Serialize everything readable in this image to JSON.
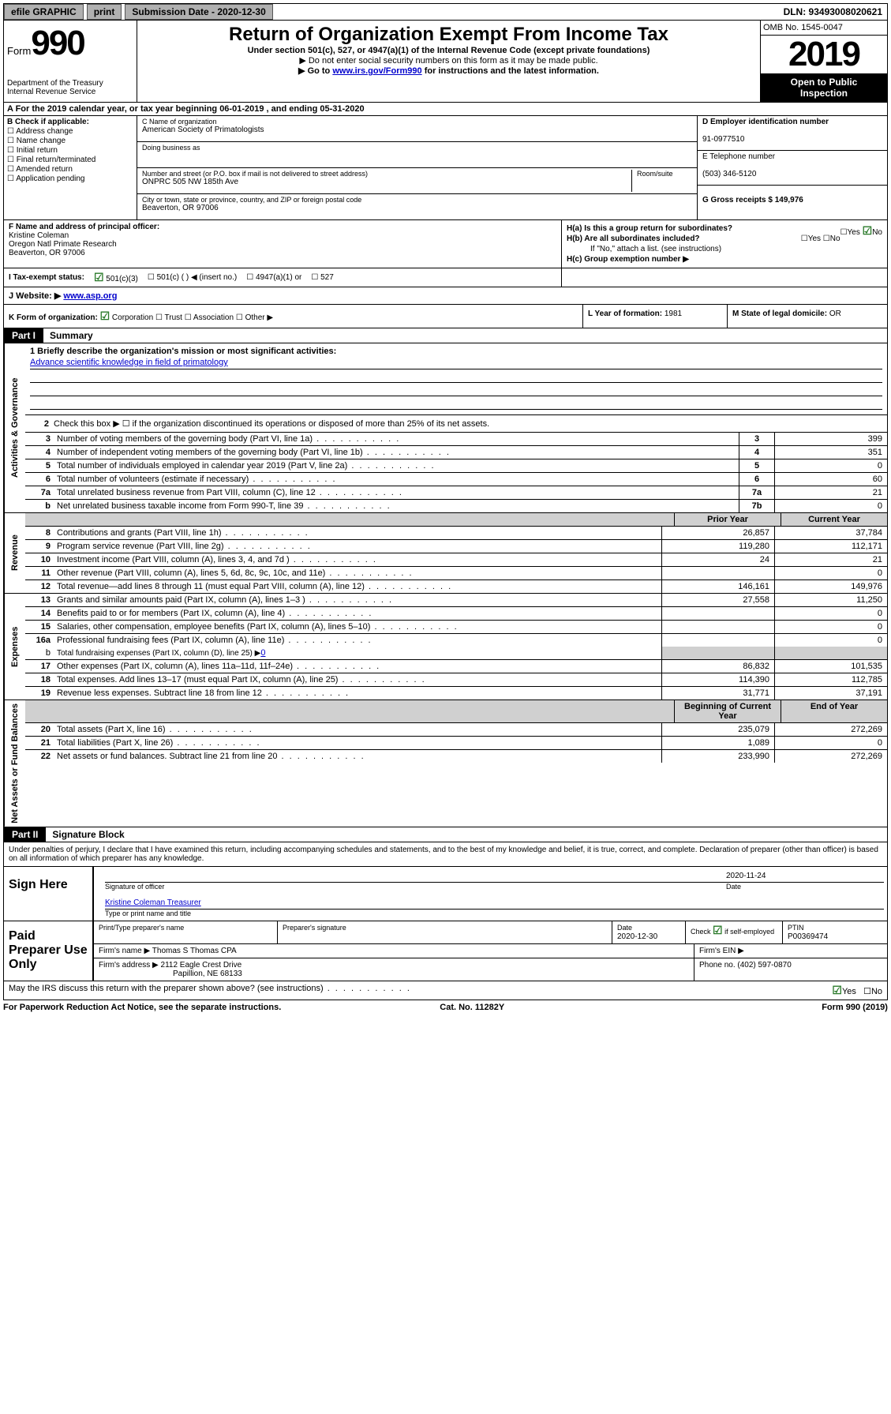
{
  "topbar": {
    "efile": "efile GRAPHIC",
    "print": "print",
    "subdate_label": "Submission Date - 2020-12-30",
    "dln_label": "DLN: 93493008020621"
  },
  "header": {
    "form_prefix": "Form",
    "form_num": "990",
    "dept": "Department of the Treasury\nInternal Revenue Service",
    "title": "Return of Organization Exempt From Income Tax",
    "subtitle": "Under section 501(c), 527, or 4947(a)(1) of the Internal Revenue Code (except private foundations)",
    "note1": "▶ Do not enter social security numbers on this form as it may be made public.",
    "note2_pre": "▶ Go to ",
    "note2_link": "www.irs.gov/Form990",
    "note2_post": " for instructions and the latest information.",
    "omb": "OMB No. 1545-0047",
    "year": "2019",
    "public1": "Open to Public",
    "public2": "Inspection"
  },
  "line_a": "A For the 2019 calendar year, or tax year beginning 06-01-2019    , and ending 05-31-2020",
  "col_b": {
    "label": "B Check if applicable:",
    "opts": [
      "Address change",
      "Name change",
      "Initial return",
      "Final return/terminated",
      "Amended return",
      "Application pending"
    ]
  },
  "col_c": {
    "name_label": "C Name of organization",
    "name": "American Society of Primatologists",
    "dba_label": "Doing business as",
    "dba": "",
    "addr_label": "Number and street (or P.O. box if mail is not delivered to street address)",
    "addr": "ONPRC 505 NW 185th Ave",
    "room_label": "Room/suite",
    "city_label": "City or town, state or province, country, and ZIP or foreign postal code",
    "city": "Beaverton, OR  97006"
  },
  "col_d": {
    "ein_label": "D Employer identification number",
    "ein": "91-0977510",
    "tel_label": "E Telephone number",
    "tel": "(503) 346-5120",
    "gross_label": "G Gross receipts $ 149,976"
  },
  "col_f": {
    "label": "F  Name and address of principal officer:",
    "name": "Kristine Coleman",
    "addr1": "Oregon Natl Primate Research",
    "addr2": "Beaverton, OR  97006"
  },
  "col_h": {
    "ha_label": "H(a)  Is this a group return for subordinates?",
    "ha_yes": "Yes",
    "ha_no": "No",
    "hb_label": "H(b)  Are all subordinates included?",
    "hb_yes": "Yes",
    "hb_no": "No",
    "hb_note": "If \"No,\" attach a list. (see instructions)",
    "hc_label": "H(c)  Group exemption number ▶"
  },
  "row_i": {
    "label": "I  Tax-exempt status:",
    "o1": "501(c)(3)",
    "o2": "501(c) (  ) ◀ (insert no.)",
    "o3": "4947(a)(1) or",
    "o4": "527"
  },
  "row_j": {
    "label": "J  Website: ▶ ",
    "url": "www.asp.org"
  },
  "row_k": "K Form of organization:",
  "row_k_opts": {
    "corp": "Corporation",
    "trust": "Trust",
    "assoc": "Association",
    "other": "Other ▶"
  },
  "row_l": {
    "label": "L Year of formation: ",
    "val": "1981"
  },
  "row_m": {
    "label": "M State of legal domicile: ",
    "val": "OR"
  },
  "part1": {
    "label": "Part I",
    "title": "Summary"
  },
  "governance": {
    "vlabel": "Activities & Governance",
    "q1_label": "1  Briefly describe the organization's mission or most significant activities:",
    "q1_text": "Advance scientific knowledge in field of primatology",
    "q2": "Check this box ▶ ☐  if the organization discontinued its operations or disposed of more than 25% of its net assets.",
    "rows": [
      {
        "n": "3",
        "d": "Number of voting members of the governing body (Part VI, line 1a)",
        "t": "3",
        "v": "399"
      },
      {
        "n": "4",
        "d": "Number of independent voting members of the governing body (Part VI, line 1b)",
        "t": "4",
        "v": "351"
      },
      {
        "n": "5",
        "d": "Total number of individuals employed in calendar year 2019 (Part V, line 2a)",
        "t": "5",
        "v": "0"
      },
      {
        "n": "6",
        "d": "Total number of volunteers (estimate if necessary)",
        "t": "6",
        "v": "60"
      },
      {
        "n": "7a",
        "d": "Total unrelated business revenue from Part VIII, column (C), line 12",
        "t": "7a",
        "v": "21"
      },
      {
        "n": "b",
        "d": "Net unrelated business taxable income from Form 990-T, line 39",
        "t": "7b",
        "v": "0"
      }
    ]
  },
  "revenue": {
    "vlabel": "Revenue",
    "hdr_py": "Prior Year",
    "hdr_cy": "Current Year",
    "rows": [
      {
        "n": "8",
        "d": "Contributions and grants (Part VIII, line 1h)",
        "py": "26,857",
        "cy": "37,784"
      },
      {
        "n": "9",
        "d": "Program service revenue (Part VIII, line 2g)",
        "py": "119,280",
        "cy": "112,171"
      },
      {
        "n": "10",
        "d": "Investment income (Part VIII, column (A), lines 3, 4, and 7d )",
        "py": "24",
        "cy": "21"
      },
      {
        "n": "11",
        "d": "Other revenue (Part VIII, column (A), lines 5, 6d, 8c, 9c, 10c, and 11e)",
        "py": "",
        "cy": "0"
      },
      {
        "n": "12",
        "d": "Total revenue—add lines 8 through 11 (must equal Part VIII, column (A), line 12)",
        "py": "146,161",
        "cy": "149,976"
      }
    ]
  },
  "expenses": {
    "vlabel": "Expenses",
    "rows": [
      {
        "n": "13",
        "d": "Grants and similar amounts paid (Part IX, column (A), lines 1–3 )",
        "py": "27,558",
        "cy": "11,250"
      },
      {
        "n": "14",
        "d": "Benefits paid to or for members (Part IX, column (A), line 4)",
        "py": "",
        "cy": "0"
      },
      {
        "n": "15",
        "d": "Salaries, other compensation, employee benefits (Part IX, column (A), lines 5–10)",
        "py": "",
        "cy": "0"
      },
      {
        "n": "16a",
        "d": "Professional fundraising fees (Part IX, column (A), line 11e)",
        "py": "",
        "cy": "0"
      }
    ],
    "row_b": {
      "n": "b",
      "d": "Total fundraising expenses (Part IX, column (D), line 25) ▶",
      "v": "0"
    },
    "rows2": [
      {
        "n": "17",
        "d": "Other expenses (Part IX, column (A), lines 11a–11d, 11f–24e)",
        "py": "86,832",
        "cy": "101,535"
      },
      {
        "n": "18",
        "d": "Total expenses. Add lines 13–17 (must equal Part IX, column (A), line 25)",
        "py": "114,390",
        "cy": "112,785"
      },
      {
        "n": "19",
        "d": "Revenue less expenses. Subtract line 18 from line 12",
        "py": "31,771",
        "cy": "37,191"
      }
    ]
  },
  "netassets": {
    "vlabel": "Net Assets or Fund Balances",
    "hdr_py": "Beginning of Current Year",
    "hdr_cy": "End of Year",
    "rows": [
      {
        "n": "20",
        "d": "Total assets (Part X, line 16)",
        "py": "235,079",
        "cy": "272,269"
      },
      {
        "n": "21",
        "d": "Total liabilities (Part X, line 26)",
        "py": "1,089",
        "cy": "0"
      },
      {
        "n": "22",
        "d": "Net assets or fund balances. Subtract line 21 from line 20",
        "py": "233,990",
        "cy": "272,269"
      }
    ]
  },
  "part2": {
    "label": "Part II",
    "title": "Signature Block"
  },
  "sig": {
    "penalty": "Under penalties of perjury, I declare that I have examined this return, including accompanying schedules and statements, and to the best of my knowledge and belief, it is true, correct, and complete. Declaration of preparer (other than officer) is based on all information of which preparer has any knowledge.",
    "sign_here": "Sign Here",
    "sig_label": "Signature of officer",
    "date": "2020-11-24",
    "date_label": "Date",
    "name": "Kristine Coleman  Treasurer",
    "name_label": "Type or print name and title"
  },
  "paid": {
    "label": "Paid Preparer Use Only",
    "hdr": {
      "c1": "Print/Type preparer's name",
      "c2": "Preparer's signature",
      "c3": "Date",
      "c3v": "2020-12-30",
      "c4": "Check ☑ if self-employed",
      "c5": "PTIN",
      "c5v": "P00369474"
    },
    "firm_name_label": "Firm's name    ▶",
    "firm_name": "Thomas S Thomas CPA",
    "firm_ein_label": "Firm's EIN ▶",
    "firm_ein": "",
    "firm_addr_label": "Firm's address ▶",
    "firm_addr1": "2112 Eagle Crest Drive",
    "firm_addr2": "Papillion, NE  68133",
    "phone_label": "Phone no. ",
    "phone": "(402) 597-0870"
  },
  "discuss": {
    "q": "May the IRS discuss this return with the preparer shown above? (see instructions)",
    "yes": "Yes",
    "no": "No"
  },
  "footer": {
    "l": "For Paperwork Reduction Act Notice, see the separate instructions.",
    "c": "Cat. No. 11282Y",
    "r": "Form 990 (2019)"
  }
}
